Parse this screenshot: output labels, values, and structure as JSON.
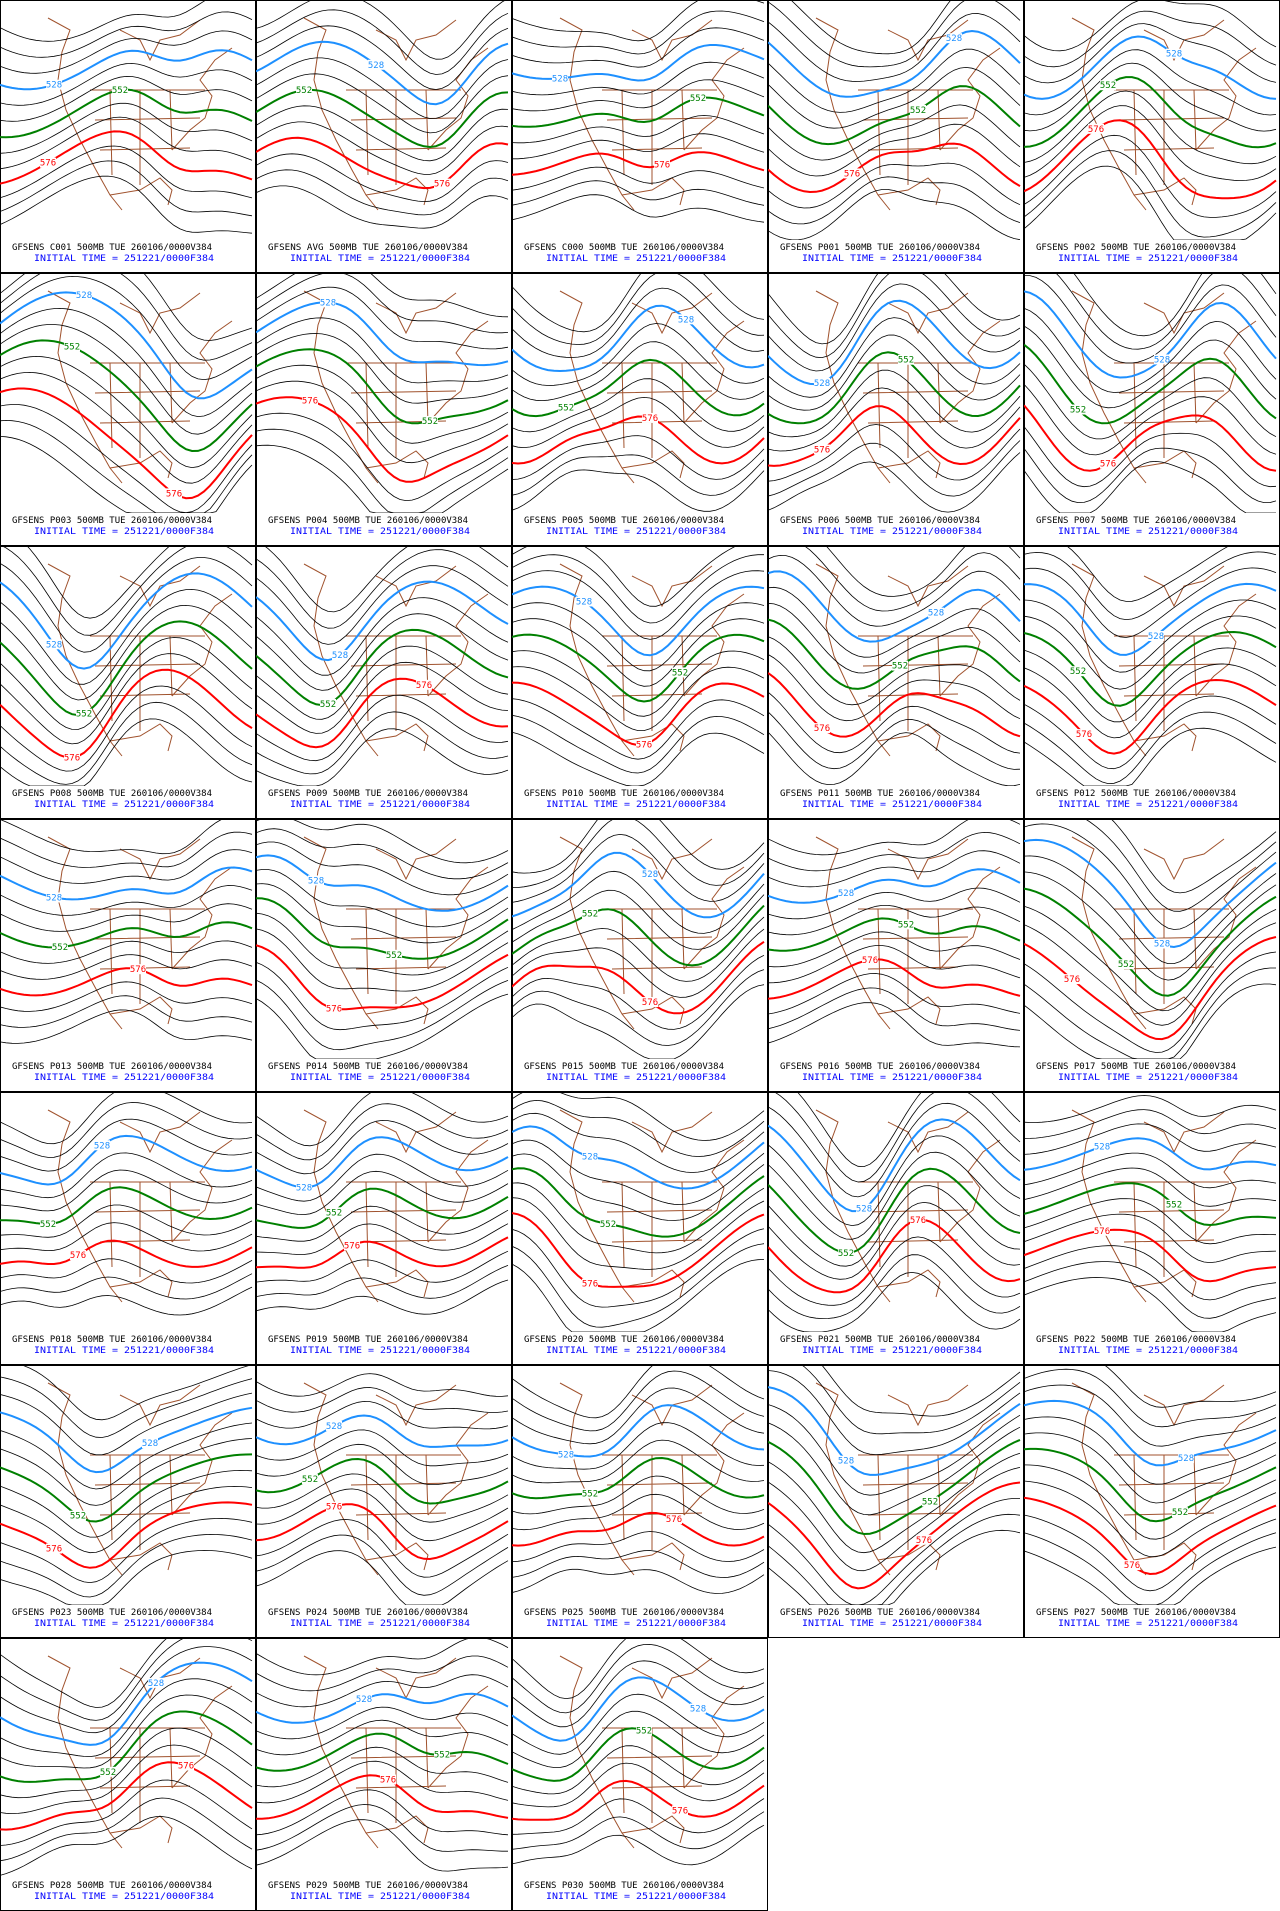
{
  "panels": [
    {
      "title": "GFSENS C001 500MB TUE 260106/0000V384",
      "initial": "INITIAL TIME = 251221/0000F384",
      "contours": [
        {
          "label": "528",
          "color": "#1e90ff"
        },
        {
          "label": "552",
          "color": "#008000"
        },
        {
          "label": "576",
          "color": "#ff0000"
        }
      ]
    },
    {
      "title": "GFSENS AVG 500MB TUE 260106/0000V384",
      "initial": "INITIAL TIME = 251221/0000F384",
      "contours": [
        {
          "label": "528",
          "color": "#1e90ff"
        },
        {
          "label": "552",
          "color": "#008000"
        },
        {
          "label": "576",
          "color": "#ff0000"
        }
      ]
    },
    {
      "title": "GFSENS C000 500MB TUE 260106/0000V384",
      "initial": "INITIAL TIME = 251221/0000F384",
      "contours": [
        {
          "label": "528",
          "color": "#1e90ff"
        },
        {
          "label": "552",
          "color": "#008000"
        },
        {
          "label": "576",
          "color": "#ff0000"
        }
      ]
    },
    {
      "title": "GFSENS P001 500MB TUE 260106/0000V384",
      "initial": "INITIAL TIME = 251221/0000F384",
      "contours": [
        {
          "label": "528",
          "color": "#1e90ff"
        },
        {
          "label": "552",
          "color": "#008000"
        },
        {
          "label": "576",
          "color": "#ff0000"
        }
      ]
    },
    {
      "title": "GFSENS P002 500MB TUE 260106/0000V384",
      "initial": "INITIAL TIME = 251221/0000F384",
      "contours": [
        {
          "label": "528",
          "color": "#1e90ff"
        },
        {
          "label": "552",
          "color": "#008000"
        },
        {
          "label": "576",
          "color": "#ff0000"
        }
      ]
    },
    {
      "title": "GFSENS P003 500MB TUE 260106/0000V384",
      "initial": "INITIAL TIME = 251221/0000F384",
      "contours": [
        {
          "label": "528",
          "color": "#1e90ff"
        },
        {
          "label": "552",
          "color": "#008000"
        },
        {
          "label": "576",
          "color": "#ff0000"
        }
      ]
    },
    {
      "title": "GFSENS P004 500MB TUE 260106/0000V384",
      "initial": "INITIAL TIME = 251221/0000F384",
      "contours": [
        {
          "label": "528",
          "color": "#1e90ff"
        },
        {
          "label": "552",
          "color": "#008000"
        },
        {
          "label": "576",
          "color": "#ff0000"
        }
      ]
    },
    {
      "title": "GFSENS P005 500MB TUE 260106/0000V384",
      "initial": "INITIAL TIME = 251221/0000F384",
      "contours": [
        {
          "label": "528",
          "color": "#1e90ff"
        },
        {
          "label": "552",
          "color": "#008000"
        },
        {
          "label": "576",
          "color": "#ff0000"
        }
      ]
    },
    {
      "title": "GFSENS P006 500MB TUE 260106/0000V384",
      "initial": "INITIAL TIME = 251221/0000F384",
      "contours": [
        {
          "label": "528",
          "color": "#1e90ff"
        },
        {
          "label": "552",
          "color": "#008000"
        },
        {
          "label": "576",
          "color": "#ff0000"
        }
      ]
    },
    {
      "title": "GFSENS P007 500MB TUE 260106/0000V384",
      "initial": "INITIAL TIME = 251221/0000F384",
      "contours": [
        {
          "label": "528",
          "color": "#1e90ff"
        },
        {
          "label": "552",
          "color": "#008000"
        },
        {
          "label": "576",
          "color": "#ff0000"
        }
      ]
    },
    {
      "title": "GFSENS P008 500MB TUE 260106/0000V384",
      "initial": "INITIAL TIME = 251221/0000F384",
      "contours": [
        {
          "label": "528",
          "color": "#1e90ff"
        },
        {
          "label": "552",
          "color": "#008000"
        },
        {
          "label": "576",
          "color": "#ff0000"
        }
      ]
    },
    {
      "title": "GFSENS P009 500MB TUE 260106/0000V384",
      "initial": "INITIAL TIME = 251221/0000F384",
      "contours": [
        {
          "label": "528",
          "color": "#1e90ff"
        },
        {
          "label": "552",
          "color": "#008000"
        },
        {
          "label": "576",
          "color": "#ff0000"
        }
      ]
    },
    {
      "title": "GFSENS P010 500MB TUE 260106/0000V384",
      "initial": "INITIAL TIME = 251221/0000F384",
      "contours": [
        {
          "label": "528",
          "color": "#1e90ff"
        },
        {
          "label": "552",
          "color": "#008000"
        },
        {
          "label": "576",
          "color": "#ff0000"
        }
      ]
    },
    {
      "title": "GFSENS P011 500MB TUE 260106/0000V384",
      "initial": "INITIAL TIME = 251221/0000F384",
      "contours": [
        {
          "label": "528",
          "color": "#1e90ff"
        },
        {
          "label": "552",
          "color": "#008000"
        },
        {
          "label": "576",
          "color": "#ff0000"
        }
      ]
    },
    {
      "title": "GFSENS P012 500MB TUE 260106/0000V384",
      "initial": "INITIAL TIME = 251221/0000F384",
      "contours": [
        {
          "label": "528",
          "color": "#1e90ff"
        },
        {
          "label": "552",
          "color": "#008000"
        },
        {
          "label": "576",
          "color": "#ff0000"
        }
      ]
    },
    {
      "title": "GFSENS P013 500MB TUE 260106/0000V384",
      "initial": "INITIAL TIME = 251221/0000F384",
      "contours": [
        {
          "label": "528",
          "color": "#1e90ff"
        },
        {
          "label": "552",
          "color": "#008000"
        },
        {
          "label": "576",
          "color": "#ff0000"
        }
      ]
    },
    {
      "title": "GFSENS P014 500MB TUE 260106/0000V384",
      "initial": "INITIAL TIME = 251221/0000F384",
      "contours": [
        {
          "label": "528",
          "color": "#1e90ff"
        },
        {
          "label": "552",
          "color": "#008000"
        },
        {
          "label": "576",
          "color": "#ff0000"
        }
      ]
    },
    {
      "title": "GFSENS P015 500MB TUE 260106/0000V384",
      "initial": "INITIAL TIME = 251221/0000F384",
      "contours": [
        {
          "label": "528",
          "color": "#1e90ff"
        },
        {
          "label": "552",
          "color": "#008000"
        },
        {
          "label": "576",
          "color": "#ff0000"
        }
      ]
    },
    {
      "title": "GFSENS P016 500MB TUE 260106/0000V384",
      "initial": "INITIAL TIME = 251221/0000F384",
      "contours": [
        {
          "label": "528",
          "color": "#1e90ff"
        },
        {
          "label": "552",
          "color": "#008000"
        },
        {
          "label": "576",
          "color": "#ff0000"
        }
      ]
    },
    {
      "title": "GFSENS P017 500MB TUE 260106/0000V384",
      "initial": "INITIAL TIME = 251221/0000F384",
      "contours": [
        {
          "label": "528",
          "color": "#1e90ff"
        },
        {
          "label": "552",
          "color": "#008000"
        },
        {
          "label": "576",
          "color": "#ff0000"
        }
      ]
    },
    {
      "title": "GFSENS P018 500MB TUE 260106/0000V384",
      "initial": "INITIAL TIME = 251221/0000F384",
      "contours": [
        {
          "label": "528",
          "color": "#1e90ff"
        },
        {
          "label": "552",
          "color": "#008000"
        },
        {
          "label": "576",
          "color": "#ff0000"
        }
      ]
    },
    {
      "title": "GFSENS P019 500MB TUE 260106/0000V384",
      "initial": "INITIAL TIME = 251221/0000F384",
      "contours": [
        {
          "label": "528",
          "color": "#1e90ff"
        },
        {
          "label": "552",
          "color": "#008000"
        },
        {
          "label": "576",
          "color": "#ff0000"
        }
      ]
    },
    {
      "title": "GFSENS P020 500MB TUE 260106/0000V384",
      "initial": "INITIAL TIME = 251221/0000F384",
      "contours": [
        {
          "label": "528",
          "color": "#1e90ff"
        },
        {
          "label": "552",
          "color": "#008000"
        },
        {
          "label": "576",
          "color": "#ff0000"
        }
      ]
    },
    {
      "title": "GFSENS P021 500MB TUE 260106/0000V384",
      "initial": "INITIAL TIME = 251221/0000F384",
      "contours": [
        {
          "label": "528",
          "color": "#1e90ff"
        },
        {
          "label": "552",
          "color": "#008000"
        },
        {
          "label": "576",
          "color": "#ff0000"
        }
      ]
    },
    {
      "title": "GFSENS P022 500MB TUE 260106/0000V384",
      "initial": "INITIAL TIME = 251221/0000F384",
      "contours": [
        {
          "label": "528",
          "color": "#1e90ff"
        },
        {
          "label": "552",
          "color": "#008000"
        },
        {
          "label": "576",
          "color": "#ff0000"
        }
      ]
    },
    {
      "title": "GFSENS P023 500MB TUE 260106/0000V384",
      "initial": "INITIAL TIME = 251221/0000F384",
      "contours": [
        {
          "label": "528",
          "color": "#1e90ff"
        },
        {
          "label": "552",
          "color": "#008000"
        },
        {
          "label": "576",
          "color": "#ff0000"
        }
      ]
    },
    {
      "title": "GFSENS P024 500MB TUE 260106/0000V384",
      "initial": "INITIAL TIME = 251221/0000F384",
      "contours": [
        {
          "label": "528",
          "color": "#1e90ff"
        },
        {
          "label": "552",
          "color": "#008000"
        },
        {
          "label": "576",
          "color": "#ff0000"
        }
      ]
    },
    {
      "title": "GFSENS P025 500MB TUE 260106/0000V384",
      "initial": "INITIAL TIME = 251221/0000F384",
      "contours": [
        {
          "label": "528",
          "color": "#1e90ff"
        },
        {
          "label": "552",
          "color": "#008000"
        },
        {
          "label": "576",
          "color": "#ff0000"
        }
      ]
    },
    {
      "title": "GFSENS P026 500MB TUE 260106/0000V384",
      "initial": "INITIAL TIME = 251221/0000F384",
      "contours": [
        {
          "label": "528",
          "color": "#1e90ff"
        },
        {
          "label": "552",
          "color": "#008000"
        },
        {
          "label": "576",
          "color": "#ff0000"
        }
      ]
    },
    {
      "title": "GFSENS P027 500MB TUE 260106/0000V384",
      "initial": "INITIAL TIME = 251221/0000F384",
      "contours": [
        {
          "label": "528",
          "color": "#1e90ff"
        },
        {
          "label": "552",
          "color": "#008000"
        },
        {
          "label": "576",
          "color": "#ff0000"
        }
      ]
    },
    {
      "title": "GFSENS P028 500MB TUE 260106/0000V384",
      "initial": "INITIAL TIME = 251221/0000F384",
      "contours": [
        {
          "label": "528",
          "color": "#1e90ff"
        },
        {
          "label": "552",
          "color": "#008000"
        },
        {
          "label": "576",
          "color": "#ff0000"
        }
      ]
    },
    {
      "title": "GFSENS P029 500MB TUE 260106/0000V384",
      "initial": "INITIAL TIME = 251221/0000F384",
      "contours": [
        {
          "label": "528",
          "color": "#1e90ff"
        },
        {
          "label": "552",
          "color": "#008000"
        },
        {
          "label": "576",
          "color": "#ff0000"
        }
      ]
    },
    {
      "title": "GFSENS P030 500MB TUE 260106/0000V384",
      "initial": "INITIAL TIME = 251221/0000F384",
      "contours": [
        {
          "label": "528",
          "color": "#1e90ff"
        },
        {
          "label": "552",
          "color": "#008000"
        },
        {
          "label": "576",
          "color": "#ff0000"
        }
      ]
    }
  ]
}
